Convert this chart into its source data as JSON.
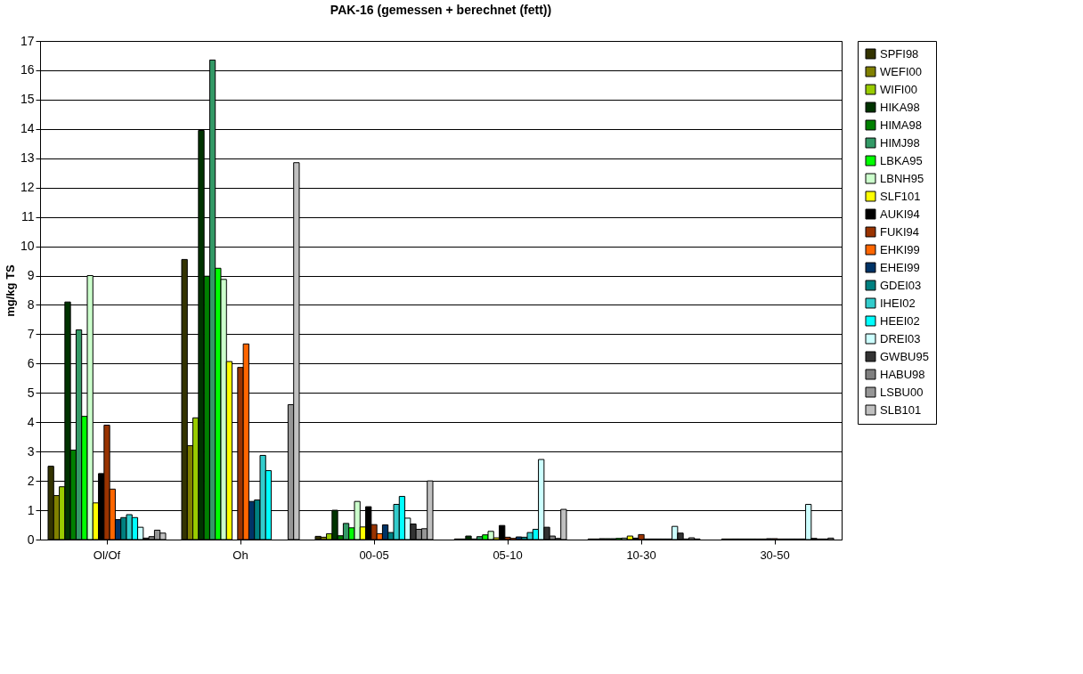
{
  "chart_data": {
    "type": "bar",
    "title": "PAK-16 (gemessen + berechnet (fett))",
    "ylabel": "mg/kg TS",
    "categories": [
      "Ol/Of",
      "Oh",
      "00-05",
      "05-10",
      "10-30",
      "30-50"
    ],
    "ylim": [
      0,
      17
    ],
    "yticks": [
      0,
      1,
      2,
      3,
      4,
      5,
      6,
      7,
      8,
      9,
      10,
      11,
      12,
      13,
      14,
      15,
      16,
      17
    ],
    "grid": "y",
    "legend": "right",
    "series": [
      {
        "name": "SPFI98",
        "color": "#333300",
        "values": [
          2.5,
          9.55,
          0.11,
          null,
          null,
          null
        ]
      },
      {
        "name": "WEFI00",
        "color": "#808000",
        "values": [
          1.5,
          3.2,
          0.08,
          0.02,
          0.02,
          0.02
        ]
      },
      {
        "name": "WIFI00",
        "color": "#99cc00",
        "values": [
          1.8,
          4.15,
          0.2,
          0.02,
          0.02,
          0.02
        ]
      },
      {
        "name": "HIKA98",
        "color": "#003300",
        "values": [
          8.1,
          13.95,
          1.0,
          0.12,
          0.03,
          0.02
        ]
      },
      {
        "name": "HIMA98",
        "color": "#008000",
        "values": [
          3.05,
          8.98,
          0.13,
          0.02,
          0.03,
          0.02
        ]
      },
      {
        "name": "HIMJ98",
        "color": "#339966",
        "values": [
          7.15,
          16.35,
          0.55,
          0.1,
          0.03,
          0.02
        ]
      },
      {
        "name": "LBKA95",
        "color": "#00ff00",
        "values": [
          4.2,
          9.25,
          0.4,
          0.16,
          0.04,
          0.02
        ]
      },
      {
        "name": "LBNH95",
        "color": "#ccffcc",
        "values": [
          9.0,
          8.87,
          1.3,
          0.28,
          0.05,
          0.02
        ]
      },
      {
        "name": "SLF101",
        "color": "#ffff00",
        "values": [
          1.25,
          6.07,
          0.43,
          0.06,
          0.12,
          0.02
        ]
      },
      {
        "name": "AUKI94",
        "color": "#000000",
        "values": [
          2.25,
          null,
          1.12,
          0.48,
          0.05,
          0.03
        ]
      },
      {
        "name": "FUKI94",
        "color": "#993300",
        "values": [
          3.9,
          5.87,
          0.51,
          0.08,
          0.17,
          0.03
        ]
      },
      {
        "name": "EHKI99",
        "color": "#ff6600",
        "values": [
          1.72,
          6.67,
          0.2,
          0.04,
          0.02,
          0.02
        ]
      },
      {
        "name": "EHEI99",
        "color": "#003366",
        "values": [
          0.68,
          1.3,
          0.5,
          0.09,
          0.02,
          0.02
        ]
      },
      {
        "name": "GDEI03",
        "color": "#008080",
        "values": [
          0.75,
          1.35,
          0.24,
          0.08,
          0.02,
          0.02
        ]
      },
      {
        "name": "IHEI02",
        "color": "#33cccc",
        "values": [
          0.85,
          2.87,
          1.2,
          0.24,
          0.02,
          0.02
        ]
      },
      {
        "name": "HEEI02",
        "color": "#00ffff",
        "values": [
          0.75,
          2.35,
          1.47,
          0.35,
          0.02,
          0.02
        ]
      },
      {
        "name": "DREI03",
        "color": "#ccffff",
        "values": [
          0.42,
          null,
          0.73,
          2.73,
          0.45,
          1.2
        ]
      },
      {
        "name": "GWBU95",
        "color": "#333333",
        "values": [
          0.05,
          null,
          0.53,
          0.42,
          0.22,
          0.04
        ]
      },
      {
        "name": "HABU98",
        "color": "#808080",
        "values": [
          0.1,
          null,
          0.35,
          0.12,
          0.02,
          0.02
        ]
      },
      {
        "name": "LSBU00",
        "color": "#969696",
        "values": [
          0.32,
          4.6,
          0.37,
          0.04,
          0.06,
          0.02
        ]
      },
      {
        "name": "SLB101",
        "color": "#c0c0c0",
        "values": [
          0.22,
          12.85,
          2.0,
          1.03,
          0.02,
          0.05
        ]
      }
    ]
  }
}
